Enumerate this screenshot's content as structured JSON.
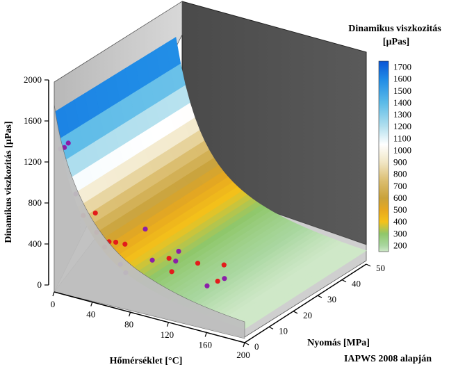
{
  "chart_data": {
    "type": "surface3d",
    "zlabel": "Dinamikus viszkozitás [µPas]",
    "xlabel": "Hőmérséklet [°C]",
    "ylabel": "Nyomás [MPa]",
    "source_note": "IAPWS 2008 alapján",
    "colorbar": {
      "title_line1": "Dinamikus viszkozitás",
      "title_line2": "[µPas]",
      "ticks": [
        "1700",
        "1600",
        "1500",
        "1400",
        "1300",
        "1200",
        "1100",
        "1000",
        "900",
        "800",
        "700",
        "600",
        "500",
        "400",
        "300",
        "200"
      ],
      "stops": [
        {
          "v": 1750,
          "c": "#0a55d6"
        },
        {
          "v": 1600,
          "c": "#1f8be6"
        },
        {
          "v": 1400,
          "c": "#5cbbe8"
        },
        {
          "v": 1200,
          "c": "#b3e0ee"
        },
        {
          "v": 1050,
          "c": "#ffffff"
        },
        {
          "v": 900,
          "c": "#f1e6c4"
        },
        {
          "v": 750,
          "c": "#dcbf72"
        },
        {
          "v": 600,
          "c": "#c9a23a"
        },
        {
          "v": 500,
          "c": "#e7a81f"
        },
        {
          "v": 400,
          "c": "#f4c21a"
        },
        {
          "v": 300,
          "c": "#8fc76a"
        },
        {
          "v": 200,
          "c": "#a9d7a0"
        },
        {
          "v": 150,
          "c": "#cfe8c8"
        }
      ]
    },
    "axes": {
      "z_ticks": [
        "0",
        "400",
        "800",
        "1200",
        "1600",
        "2000"
      ],
      "x_ticks": [
        "0",
        "40",
        "80",
        "120",
        "160",
        "200"
      ],
      "y_ticks": [
        "0",
        "10",
        "20",
        "30",
        "40",
        "50"
      ],
      "zlim": [
        0,
        2000
      ],
      "xlim": [
        0,
        200
      ],
      "ylim": [
        0,
        50
      ]
    },
    "points": [
      {
        "t": 2,
        "p": 5,
        "v": 1380,
        "color": "#8b1fa8"
      },
      {
        "t": 3,
        "p": 3,
        "v": 1370,
        "color": "#8b1fa8"
      },
      {
        "t": 4,
        "p": 1,
        "v": 1390,
        "color": "#8b1fa8"
      },
      {
        "t": 20,
        "p": 1,
        "v": 990,
        "color": "#8b1fa8"
      },
      {
        "t": 28,
        "p": 1,
        "v": 800,
        "color": "#e31b1b"
      },
      {
        "t": 33,
        "p": 4,
        "v": 790,
        "color": "#e31b1b"
      },
      {
        "t": 42,
        "p": 1,
        "v": 670,
        "color": "#e31b1b"
      },
      {
        "t": 55,
        "p": 1,
        "v": 610,
        "color": "#e31b1b"
      },
      {
        "t": 57,
        "p": 3,
        "v": 580,
        "color": "#e31b1b"
      },
      {
        "t": 59,
        "p": 6,
        "v": 520,
        "color": "#e31b1b"
      },
      {
        "t": 53,
        "p": 0,
        "v": 570,
        "color": "#e31b1b"
      },
      {
        "t": 65,
        "p": 12,
        "v": 590,
        "color": "#8b1fa8"
      },
      {
        "t": 67,
        "p": 1,
        "v": 420,
        "color": "#8b1fa8"
      },
      {
        "t": 70,
        "p": 2,
        "v": 330,
        "color": "#8b1fa8"
      },
      {
        "t": 80,
        "p": 9,
        "v": 370,
        "color": "#8b1fa8"
      },
      {
        "t": 95,
        "p": 10,
        "v": 410,
        "color": "#e31b1b"
      },
      {
        "t": 100,
        "p": 12,
        "v": 460,
        "color": "#8b1fa8"
      },
      {
        "t": 102,
        "p": 10,
        "v": 400,
        "color": "#8b1fa8"
      },
      {
        "t": 103,
        "p": 8,
        "v": 330,
        "color": "#e31b1b"
      },
      {
        "t": 115,
        "p": 14,
        "v": 350,
        "color": "#e31b1b"
      },
      {
        "t": 140,
        "p": 15,
        "v": 380,
        "color": "#e31b1b"
      },
      {
        "t": 135,
        "p": 10,
        "v": 240,
        "color": "#8b1fa8"
      },
      {
        "t": 141,
        "p": 12,
        "v": 270,
        "color": "#e31b1b"
      },
      {
        "t": 143,
        "p": 14,
        "v": 270,
        "color": "#8b1fa8"
      }
    ]
  }
}
